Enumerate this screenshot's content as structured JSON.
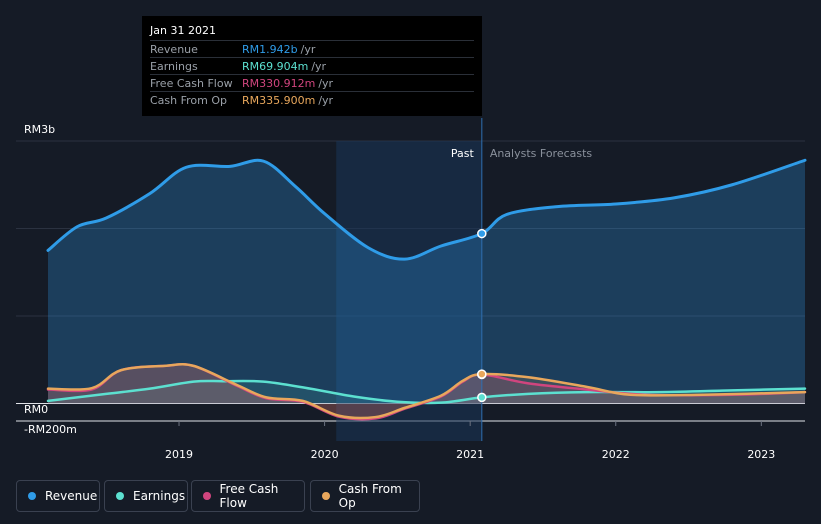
{
  "tooltip": {
    "date": "Jan 31 2021",
    "rows": [
      {
        "label": "Revenue",
        "value": "RM1.942b",
        "unit": "/yr",
        "color": "#2f9ce8"
      },
      {
        "label": "Earnings",
        "value": "RM69.904m",
        "unit": "/yr",
        "color": "#5ce0d0"
      },
      {
        "label": "Free Cash Flow",
        "value": "RM330.912m",
        "unit": "/yr",
        "color": "#d0457e"
      },
      {
        "label": "Cash From Op",
        "value": "RM335.900m",
        "unit": "/yr",
        "color": "#e8a75c"
      }
    ]
  },
  "legend": [
    {
      "label": "Revenue",
      "color": "#2f9ce8"
    },
    {
      "label": "Earnings",
      "color": "#5ce0d0"
    },
    {
      "label": "Free Cash Flow",
      "color": "#d0457e"
    },
    {
      "label": "Cash From Op",
      "color": "#e8a75c"
    }
  ],
  "chart_data": {
    "type": "area",
    "x_unit": "year",
    "y_unit": "RM million",
    "ylim": [
      -200,
      3000
    ],
    "xlim": [
      2018.1,
      2023.3
    ],
    "y_tick_labels": [
      {
        "value": 3000,
        "label": "RM3b"
      },
      {
        "value": 0,
        "label": "RM0"
      },
      {
        "value": -200,
        "label": "-RM200m"
      }
    ],
    "x_ticks": [
      {
        "value": 2019,
        "label": "2019"
      },
      {
        "value": 2020,
        "label": "2020"
      },
      {
        "value": 2021,
        "label": "2021"
      },
      {
        "value": 2022,
        "label": "2022"
      },
      {
        "value": 2023,
        "label": "2023"
      }
    ],
    "past_label": "Past",
    "forecast_label": "Analysts Forecasts",
    "highlight_start": 2020.08,
    "divider": 2021.08,
    "series": [
      {
        "name": "Revenue",
        "color": "#2f9ce8",
        "points": [
          [
            2018.1,
            1750
          ],
          [
            2018.3,
            2020
          ],
          [
            2018.5,
            2120
          ],
          [
            2018.8,
            2400
          ],
          [
            2019.05,
            2700
          ],
          [
            2019.35,
            2710
          ],
          [
            2019.58,
            2770
          ],
          [
            2019.8,
            2480
          ],
          [
            2020.0,
            2170
          ],
          [
            2020.3,
            1780
          ],
          [
            2020.55,
            1650
          ],
          [
            2020.8,
            1800
          ],
          [
            2021.08,
            1942
          ],
          [
            2021.25,
            2160
          ],
          [
            2021.6,
            2250
          ],
          [
            2022.0,
            2280
          ],
          [
            2022.4,
            2350
          ],
          [
            2022.8,
            2500
          ],
          [
            2023.3,
            2780
          ]
        ]
      },
      {
        "name": "Earnings",
        "color": "#5ce0d0",
        "points": [
          [
            2018.1,
            30
          ],
          [
            2018.5,
            110
          ],
          [
            2018.8,
            170
          ],
          [
            2019.1,
            250
          ],
          [
            2019.3,
            255
          ],
          [
            2019.58,
            250
          ],
          [
            2019.9,
            170
          ],
          [
            2020.2,
            80
          ],
          [
            2020.5,
            20
          ],
          [
            2020.8,
            10
          ],
          [
            2021.08,
            70
          ],
          [
            2021.4,
            110
          ],
          [
            2021.8,
            130
          ],
          [
            2022.3,
            130
          ],
          [
            2022.8,
            150
          ],
          [
            2023.3,
            170
          ]
        ]
      },
      {
        "name": "Free Cash Flow",
        "color": "#d0457e",
        "points": [
          [
            2018.1,
            160
          ],
          [
            2018.4,
            160
          ],
          [
            2018.6,
            380
          ],
          [
            2018.9,
            430
          ],
          [
            2019.1,
            430
          ],
          [
            2019.4,
            200
          ],
          [
            2019.6,
            60
          ],
          [
            2019.85,
            20
          ],
          [
            2020.1,
            -150
          ],
          [
            2020.35,
            -170
          ],
          [
            2020.55,
            -60
          ],
          [
            2020.8,
            80
          ],
          [
            2020.95,
            250
          ],
          [
            2021.08,
            331
          ],
          [
            2021.4,
            230
          ],
          [
            2021.8,
            160
          ],
          [
            2022.2,
            100
          ],
          [
            2022.8,
            100
          ],
          [
            2023.3,
            130
          ]
        ]
      },
      {
        "name": "Cash From Op",
        "color": "#e8a75c",
        "points": [
          [
            2018.1,
            170
          ],
          [
            2018.4,
            175
          ],
          [
            2018.6,
            380
          ],
          [
            2018.9,
            430
          ],
          [
            2019.1,
            430
          ],
          [
            2019.4,
            210
          ],
          [
            2019.6,
            70
          ],
          [
            2019.85,
            30
          ],
          [
            2020.1,
            -140
          ],
          [
            2020.35,
            -155
          ],
          [
            2020.55,
            -50
          ],
          [
            2020.8,
            90
          ],
          [
            2020.95,
            260
          ],
          [
            2021.08,
            336
          ],
          [
            2021.4,
            300
          ],
          [
            2021.8,
            190
          ],
          [
            2022.1,
            100
          ],
          [
            2022.6,
            100
          ],
          [
            2023.3,
            130
          ]
        ]
      }
    ]
  }
}
